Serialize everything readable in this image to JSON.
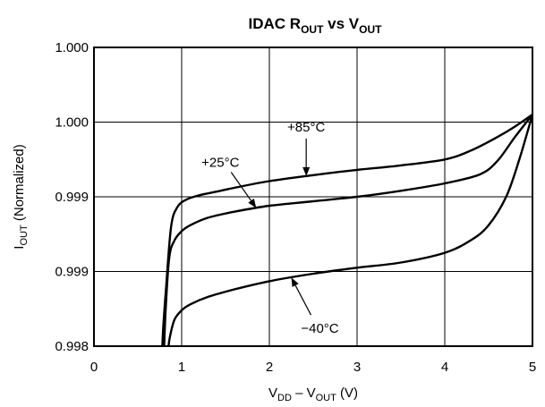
{
  "chart_data": {
    "type": "line",
    "title": {
      "main": "IDAC R",
      "main_sub": "OUT",
      "mid": " vs V",
      "mid_sub": "OUT"
    },
    "xlabel": {
      "a": "V",
      "a_sub": "DD",
      "b": " – V",
      "b_sub": "OUT",
      "c": " (V)"
    },
    "ylabel": {
      "a": "I",
      "a_sub": "OUT",
      "b": " (Normalized)"
    },
    "xlim": [
      0,
      5
    ],
    "x_ticks": [
      0,
      1,
      2,
      3,
      4,
      5
    ],
    "x_tick_labels": [
      "0",
      "1",
      "2",
      "3",
      "4",
      "5"
    ],
    "y_tick_labels": [
      "1.000",
      "1.000",
      "0.999",
      "0.999",
      "0.998"
    ],
    "grid": true,
    "series": [
      {
        "name": "+85°C",
        "x": [
          0.78,
          0.79,
          0.82,
          0.88,
          0.95,
          1.05,
          1.2,
          1.4,
          1.6,
          2.0,
          2.5,
          3.0,
          3.5,
          4.0,
          4.3,
          4.6,
          4.8,
          5.0
        ],
        "y": [
          0.0,
          0.25,
          0.75,
          1.6,
          1.86,
          1.96,
          2.02,
          2.07,
          2.12,
          2.21,
          2.29,
          2.36,
          2.42,
          2.5,
          2.62,
          2.8,
          2.94,
          3.1
        ]
      },
      {
        "name": "+25°C",
        "x": [
          0.8,
          0.82,
          0.86,
          0.92,
          1.0,
          1.1,
          1.3,
          1.6,
          2.0,
          2.5,
          3.0,
          3.5,
          4.0,
          4.4,
          4.6,
          4.8,
          5.0
        ],
        "y": [
          0.0,
          0.55,
          1.2,
          1.42,
          1.54,
          1.62,
          1.72,
          1.8,
          1.88,
          1.94,
          2.0,
          2.08,
          2.18,
          2.3,
          2.48,
          2.8,
          3.1
        ]
      },
      {
        "name": "−40°C",
        "x": [
          0.85,
          0.87,
          0.92,
          1.0,
          1.1,
          1.3,
          1.6,
          2.0,
          2.5,
          3.0,
          3.5,
          4.0,
          4.3,
          4.5,
          4.7,
          4.85,
          5.0
        ],
        "y": [
          0.0,
          0.15,
          0.36,
          0.48,
          0.56,
          0.66,
          0.76,
          0.87,
          0.97,
          1.05,
          1.12,
          1.25,
          1.42,
          1.62,
          2.0,
          2.5,
          3.1
        ]
      }
    ],
    "y_units": "grid divisions from bottom",
    "annotations": [
      {
        "text": "+85°C",
        "series": 0,
        "point_x": 2.42
      },
      {
        "text": "+25°C",
        "series": 1,
        "point_x": 1.85
      },
      {
        "text": "−40°C",
        "series": 2,
        "point_x": 2.25
      }
    ]
  }
}
